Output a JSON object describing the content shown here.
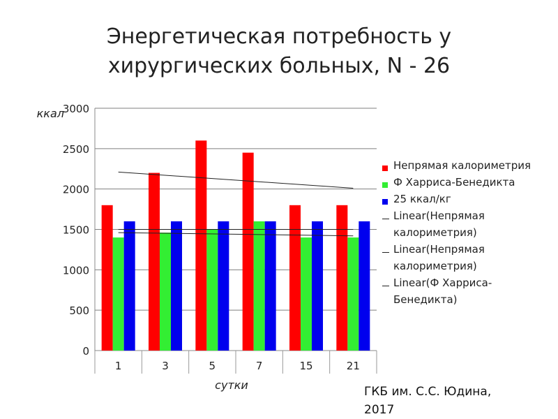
{
  "slide": {
    "title_line1": "Энергетическая потребность у",
    "title_line2": "хирургических больных, N - 26",
    "footer_line1": "ГКБ им. С.С. Юдина,",
    "footer_line2": "2017"
  },
  "chart_data": {
    "type": "bar",
    "title": "",
    "xlabel": "сутки",
    "ylabel": "ккал",
    "ylim": [
      0,
      3000
    ],
    "yticks": [
      0,
      500,
      1000,
      1500,
      2000,
      2500,
      3000
    ],
    "grid": true,
    "legend_position": "right",
    "categories": [
      "1",
      "3",
      "5",
      "7",
      "15",
      "21"
    ],
    "series": [
      {
        "name": "Непрямая калориметрия",
        "color": "#ff0000",
        "values": [
          1800,
          2200,
          2600,
          2450,
          1800,
          1800
        ]
      },
      {
        "name": "Ф Харриса-Бенедикта",
        "color": "#33ee33",
        "values": [
          1400,
          1460,
          1500,
          1600,
          1400,
          1400
        ]
      },
      {
        "name": "25 ккал/кг",
        "color": "#0000ee",
        "values": [
          1600,
          1600,
          1600,
          1600,
          1600,
          1600
        ]
      }
    ],
    "trendlines": [
      {
        "name": "Linear(Непрямая калориметрия)",
        "color": "#222222",
        "start": 2210,
        "end": 2010
      },
      {
        "name": "Linear(Непрямая калориметрия)",
        "color": "#222222",
        "start": 1500,
        "end": 1500
      },
      {
        "name": "Linear(Ф Харриса-Бенедикта)",
        "color": "#222222",
        "start": 1460,
        "end": 1420
      }
    ]
  }
}
